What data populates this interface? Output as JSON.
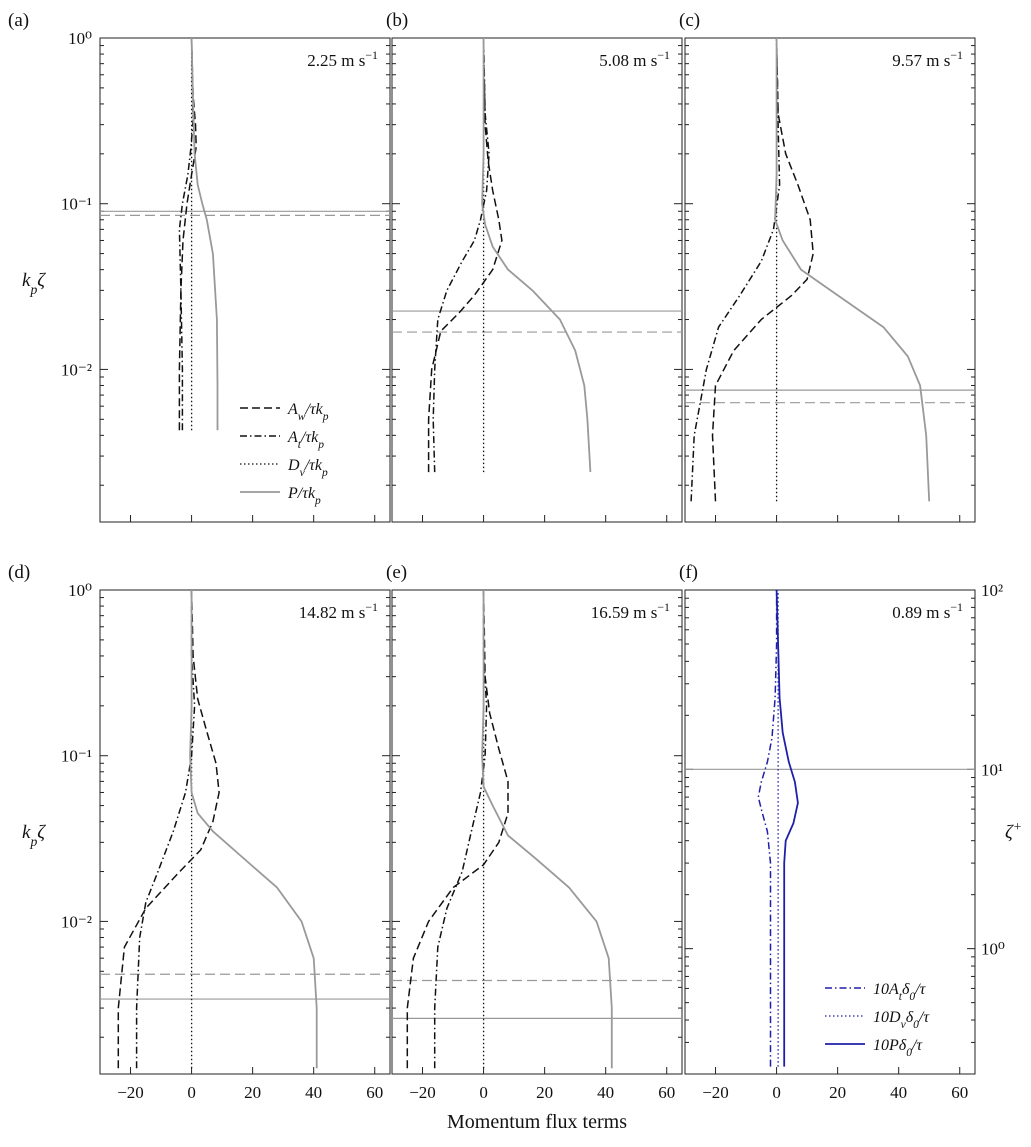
{
  "figure": {
    "xlabel": "Momentum flux terms",
    "ylabel_left": "k<sub>p</sub>ζ",
    "ylabel_right": "ζ+",
    "x_ticks": [
      "−20",
      "0",
      "20",
      "40",
      "60"
    ],
    "y_ticks_kp": [
      "10⁻²",
      "10⁻¹",
      "10⁰"
    ],
    "y_ticks_plus": [
      "10⁰",
      "10¹",
      "10²"
    ]
  },
  "chart_data": [
    {
      "id": "a",
      "panel_label": "(a)",
      "speed": "2.25 m s⁻¹",
      "type": "line",
      "xlim": [
        -30,
        65
      ],
      "ylim": [
        0.0012,
        1
      ],
      "yscale": "log",
      "hlines": [
        {
          "y": 0.09,
          "style": "solid-gray"
        },
        {
          "y": 0.085,
          "style": "dashed-gray"
        }
      ],
      "series": [
        {
          "name": "Aw",
          "style": "dashed",
          "points": [
            [
              -4,
              0.0043
            ],
            [
              -4,
              0.01
            ],
            [
              -3.5,
              0.03
            ],
            [
              -2.8,
              0.06
            ],
            [
              -1.5,
              0.1
            ],
            [
              0,
              0.15
            ],
            [
              1.5,
              0.22
            ],
            [
              1.3,
              0.3
            ],
            [
              0.5,
              0.45
            ],
            [
              0.2,
              0.7
            ],
            [
              0,
              1
            ]
          ]
        },
        {
          "name": "At",
          "style": "dashdot",
          "points": [
            [
              -3,
              0.0043
            ],
            [
              -3,
              0.01
            ],
            [
              -3.5,
              0.03
            ],
            [
              -4,
              0.07
            ],
            [
              -3,
              0.1
            ],
            [
              -1.2,
              0.15
            ],
            [
              -0.2,
              0.22
            ],
            [
              0.5,
              0.32
            ],
            [
              0.3,
              0.5
            ],
            [
              0,
              1
            ]
          ]
        },
        {
          "name": "Dv",
          "style": "dotted",
          "points": [
            [
              0,
              0.0043
            ],
            [
              0,
              1
            ]
          ]
        },
        {
          "name": "P",
          "style": "solid-gray",
          "points": [
            [
              8.5,
              0.0043
            ],
            [
              8.5,
              0.008
            ],
            [
              8.3,
              0.02
            ],
            [
              7,
              0.05
            ],
            [
              5,
              0.08
            ],
            [
              3.5,
              0.1
            ],
            [
              2,
              0.13
            ],
            [
              1,
              0.2
            ],
            [
              0.5,
              0.4
            ],
            [
              0,
              1
            ]
          ]
        }
      ],
      "legend": [
        "A<sub>w</sub>/τk<sub>p</sub>",
        "A<sub>t</sub>/τk<sub>p</sub>",
        "D<sub>v</sub>/τk<sub>p</sub>",
        "P/τk<sub>p</sub>"
      ]
    },
    {
      "id": "b",
      "panel_label": "(b)",
      "speed": "5.08 m s⁻¹",
      "type": "line",
      "xlim": [
        -30,
        65
      ],
      "ylim": [
        0.0012,
        1
      ],
      "yscale": "log",
      "hlines": [
        {
          "y": 0.0225,
          "style": "solid-gray"
        },
        {
          "y": 0.0168,
          "style": "dashed-gray"
        }
      ],
      "series": [
        {
          "name": "Aw",
          "style": "dashed",
          "points": [
            [
              -18,
              0.0024
            ],
            [
              -18,
              0.005
            ],
            [
              -17,
              0.01
            ],
            [
              -14,
              0.017
            ],
            [
              -8,
              0.022
            ],
            [
              -3,
              0.028
            ],
            [
              3,
              0.04
            ],
            [
              6,
              0.06
            ],
            [
              5,
              0.08
            ],
            [
              3,
              0.12
            ],
            [
              1.5,
              0.18
            ],
            [
              0.5,
              0.3
            ],
            [
              0,
              1
            ]
          ]
        },
        {
          "name": "At",
          "style": "dashdot",
          "points": [
            [
              -16,
              0.0024
            ],
            [
              -16.5,
              0.005
            ],
            [
              -16,
              0.01
            ],
            [
              -15,
              0.02
            ],
            [
              -12,
              0.03
            ],
            [
              -7,
              0.045
            ],
            [
              -3,
              0.06
            ],
            [
              -1,
              0.08
            ],
            [
              1,
              0.12
            ],
            [
              1.8,
              0.2
            ],
            [
              0.5,
              0.35
            ],
            [
              0,
              1
            ]
          ]
        },
        {
          "name": "Dv",
          "style": "dotted",
          "points": [
            [
              0,
              0.0024
            ],
            [
              0,
              1
            ]
          ]
        },
        {
          "name": "P",
          "style": "solid-gray",
          "points": [
            [
              35,
              0.0024
            ],
            [
              34,
              0.005
            ],
            [
              33,
              0.008
            ],
            [
              30,
              0.013
            ],
            [
              25,
              0.02
            ],
            [
              16,
              0.03
            ],
            [
              8,
              0.04
            ],
            [
              3,
              0.055
            ],
            [
              0.5,
              0.075
            ],
            [
              -0.5,
              0.1
            ],
            [
              0,
              0.2
            ],
            [
              0,
              1
            ]
          ]
        }
      ]
    },
    {
      "id": "c",
      "panel_label": "(c)",
      "speed": "9.57 m s⁻¹",
      "type": "line",
      "xlim": [
        -30,
        65
      ],
      "ylim": [
        0.0012,
        1
      ],
      "yscale": "log",
      "hlines": [
        {
          "y": 0.0075,
          "style": "solid-gray"
        },
        {
          "y": 0.0063,
          "style": "dashed-gray"
        }
      ],
      "series": [
        {
          "name": "Aw",
          "style": "dashed",
          "points": [
            [
              -20,
              0.0016
            ],
            [
              -21,
              0.004
            ],
            [
              -20,
              0.008
            ],
            [
              -14,
              0.013
            ],
            [
              -5,
              0.02
            ],
            [
              5,
              0.028
            ],
            [
              10,
              0.035
            ],
            [
              12,
              0.05
            ],
            [
              11,
              0.08
            ],
            [
              7,
              0.13
            ],
            [
              3,
              0.2
            ],
            [
              0.5,
              0.35
            ],
            [
              0,
              1
            ]
          ]
        },
        {
          "name": "At",
          "style": "dashdot",
          "points": [
            [
              -28,
              0.0016
            ],
            [
              -27,
              0.004
            ],
            [
              -23,
              0.01
            ],
            [
              -19,
              0.018
            ],
            [
              -12,
              0.028
            ],
            [
              -5,
              0.045
            ],
            [
              -1,
              0.07
            ],
            [
              1,
              0.13
            ],
            [
              0.5,
              0.3
            ],
            [
              0,
              1
            ]
          ]
        },
        {
          "name": "Dv",
          "style": "dotted",
          "points": [
            [
              0,
              0.0016
            ],
            [
              0,
              1
            ]
          ]
        },
        {
          "name": "P",
          "style": "solid-gray",
          "points": [
            [
              50,
              0.0016
            ],
            [
              49,
              0.004
            ],
            [
              47,
              0.008
            ],
            [
              43,
              0.012
            ],
            [
              35,
              0.018
            ],
            [
              20,
              0.028
            ],
            [
              8,
              0.04
            ],
            [
              2,
              0.06
            ],
            [
              -0.5,
              0.08
            ],
            [
              0,
              0.15
            ],
            [
              0,
              1
            ]
          ]
        }
      ]
    },
    {
      "id": "d",
      "panel_label": "(d)",
      "speed": "14.82 m s⁻¹",
      "type": "line",
      "xlim": [
        -30,
        65
      ],
      "ylim": [
        0.0012,
        1
      ],
      "yscale": "log",
      "hlines": [
        {
          "y": 0.0048,
          "style": "dashed-gray"
        },
        {
          "y": 0.0034,
          "style": "solid-gray"
        }
      ],
      "series": [
        {
          "name": "Aw",
          "style": "dashed",
          "points": [
            [
              -24,
              0.0013
            ],
            [
              -24,
              0.003
            ],
            [
              -22,
              0.007
            ],
            [
              -15,
              0.012
            ],
            [
              -5,
              0.019
            ],
            [
              3,
              0.027
            ],
            [
              7,
              0.04
            ],
            [
              9,
              0.06
            ],
            [
              8,
              0.09
            ],
            [
              5,
              0.14
            ],
            [
              2,
              0.22
            ],
            [
              0.5,
              0.4
            ],
            [
              0,
              1
            ]
          ]
        },
        {
          "name": "At",
          "style": "dashdot",
          "points": [
            [
              -18,
              0.0013
            ],
            [
              -18,
              0.003
            ],
            [
              -17,
              0.008
            ],
            [
              -15,
              0.013
            ],
            [
              -11,
              0.02
            ],
            [
              -6,
              0.035
            ],
            [
              -2,
              0.06
            ],
            [
              0,
              0.1
            ],
            [
              1,
              0.2
            ],
            [
              0,
              0.4
            ],
            [
              0,
              1
            ]
          ]
        },
        {
          "name": "Dv",
          "style": "dotted",
          "points": [
            [
              0,
              0.0013
            ],
            [
              0,
              1
            ]
          ]
        },
        {
          "name": "P",
          "style": "solid-gray",
          "points": [
            [
              41,
              0.0013
            ],
            [
              41,
              0.003
            ],
            [
              40,
              0.006
            ],
            [
              36,
              0.01
            ],
            [
              28,
              0.016
            ],
            [
              16,
              0.025
            ],
            [
              7,
              0.035
            ],
            [
              2,
              0.045
            ],
            [
              0,
              0.06
            ],
            [
              -0.5,
              0.1
            ],
            [
              0,
              0.2
            ],
            [
              0,
              1
            ]
          ]
        }
      ]
    },
    {
      "id": "e",
      "panel_label": "(e)",
      "speed": "16.59 m s⁻¹",
      "type": "line",
      "xlim": [
        -30,
        65
      ],
      "ylim": [
        0.0012,
        1
      ],
      "yscale": "log",
      "hlines": [
        {
          "y": 0.0044,
          "style": "dashed-gray"
        },
        {
          "y": 0.0026,
          "style": "solid-gray"
        }
      ],
      "series": [
        {
          "name": "Aw",
          "style": "dashed",
          "points": [
            [
              -25,
              0.0013
            ],
            [
              -25,
              0.003
            ],
            [
              -23,
              0.006
            ],
            [
              -18,
              0.01
            ],
            [
              -10,
              0.016
            ],
            [
              0,
              0.022
            ],
            [
              5,
              0.03
            ],
            [
              8,
              0.045
            ],
            [
              8,
              0.07
            ],
            [
              5,
              0.11
            ],
            [
              2,
              0.18
            ],
            [
              0.5,
              0.3
            ],
            [
              0,
              1
            ]
          ]
        },
        {
          "name": "At",
          "style": "dashdot",
          "points": [
            [
              -16,
              0.0013
            ],
            [
              -16,
              0.003
            ],
            [
              -15,
              0.007
            ],
            [
              -12,
              0.012
            ],
            [
              -7,
              0.02
            ],
            [
              -4,
              0.035
            ],
            [
              -1,
              0.06
            ],
            [
              0.5,
              0.1
            ],
            [
              1,
              0.2
            ],
            [
              0,
              0.4
            ],
            [
              0,
              1
            ]
          ]
        },
        {
          "name": "Dv",
          "style": "dotted",
          "points": [
            [
              0,
              0.0013
            ],
            [
              0,
              1
            ]
          ]
        },
        {
          "name": "P",
          "style": "solid-gray",
          "points": [
            [
              42,
              0.0013
            ],
            [
              42,
              0.003
            ],
            [
              41,
              0.006
            ],
            [
              37,
              0.01
            ],
            [
              28,
              0.016
            ],
            [
              17,
              0.024
            ],
            [
              8,
              0.033
            ],
            [
              3,
              0.05
            ],
            [
              0,
              0.065
            ],
            [
              -0.5,
              0.1
            ],
            [
              0,
              0.2
            ],
            [
              0,
              1
            ]
          ]
        }
      ]
    },
    {
      "id": "f",
      "panel_label": "(f)",
      "speed": "0.89 m s⁻¹",
      "type": "line",
      "xlim": [
        -30,
        65
      ],
      "ylim": [
        0.2,
        100
      ],
      "yscale": "log",
      "hlines": [
        {
          "y": 10,
          "style": "solid-gray"
        }
      ],
      "series": [
        {
          "name": "10At",
          "style": "dashdot-blue",
          "points": [
            [
              -2,
              0.22
            ],
            [
              -2,
              3
            ],
            [
              -3,
              4.5
            ],
            [
              -5,
              6
            ],
            [
              -6,
              7
            ],
            [
              -5,
              8.5
            ],
            [
              -3,
              11
            ],
            [
              -1.5,
              15
            ],
            [
              -0.5,
              25
            ],
            [
              0,
              50
            ],
            [
              0,
              100
            ]
          ]
        },
        {
          "name": "10Dv",
          "style": "dotted-blue",
          "points": [
            [
              0.5,
              0.22
            ],
            [
              0.5,
              100
            ]
          ]
        },
        {
          "name": "10P",
          "style": "solid-blue",
          "points": [
            [
              2.5,
              0.22
            ],
            [
              2.5,
              3
            ],
            [
              3,
              4
            ],
            [
              5.5,
              5
            ],
            [
              7,
              6.5
            ],
            [
              6,
              8.5
            ],
            [
              4,
              11
            ],
            [
              2,
              16
            ],
            [
              1,
              25
            ],
            [
              0.5,
              50
            ],
            [
              0,
              100
            ]
          ]
        }
      ],
      "legend": [
        "10A<sub>t</sub>δ<sub>0</sub>/τ",
        "10D<sub>v</sub>δ<sub>0</sub>/τ",
        "10Pδ<sub>0</sub>/τ"
      ]
    }
  ]
}
